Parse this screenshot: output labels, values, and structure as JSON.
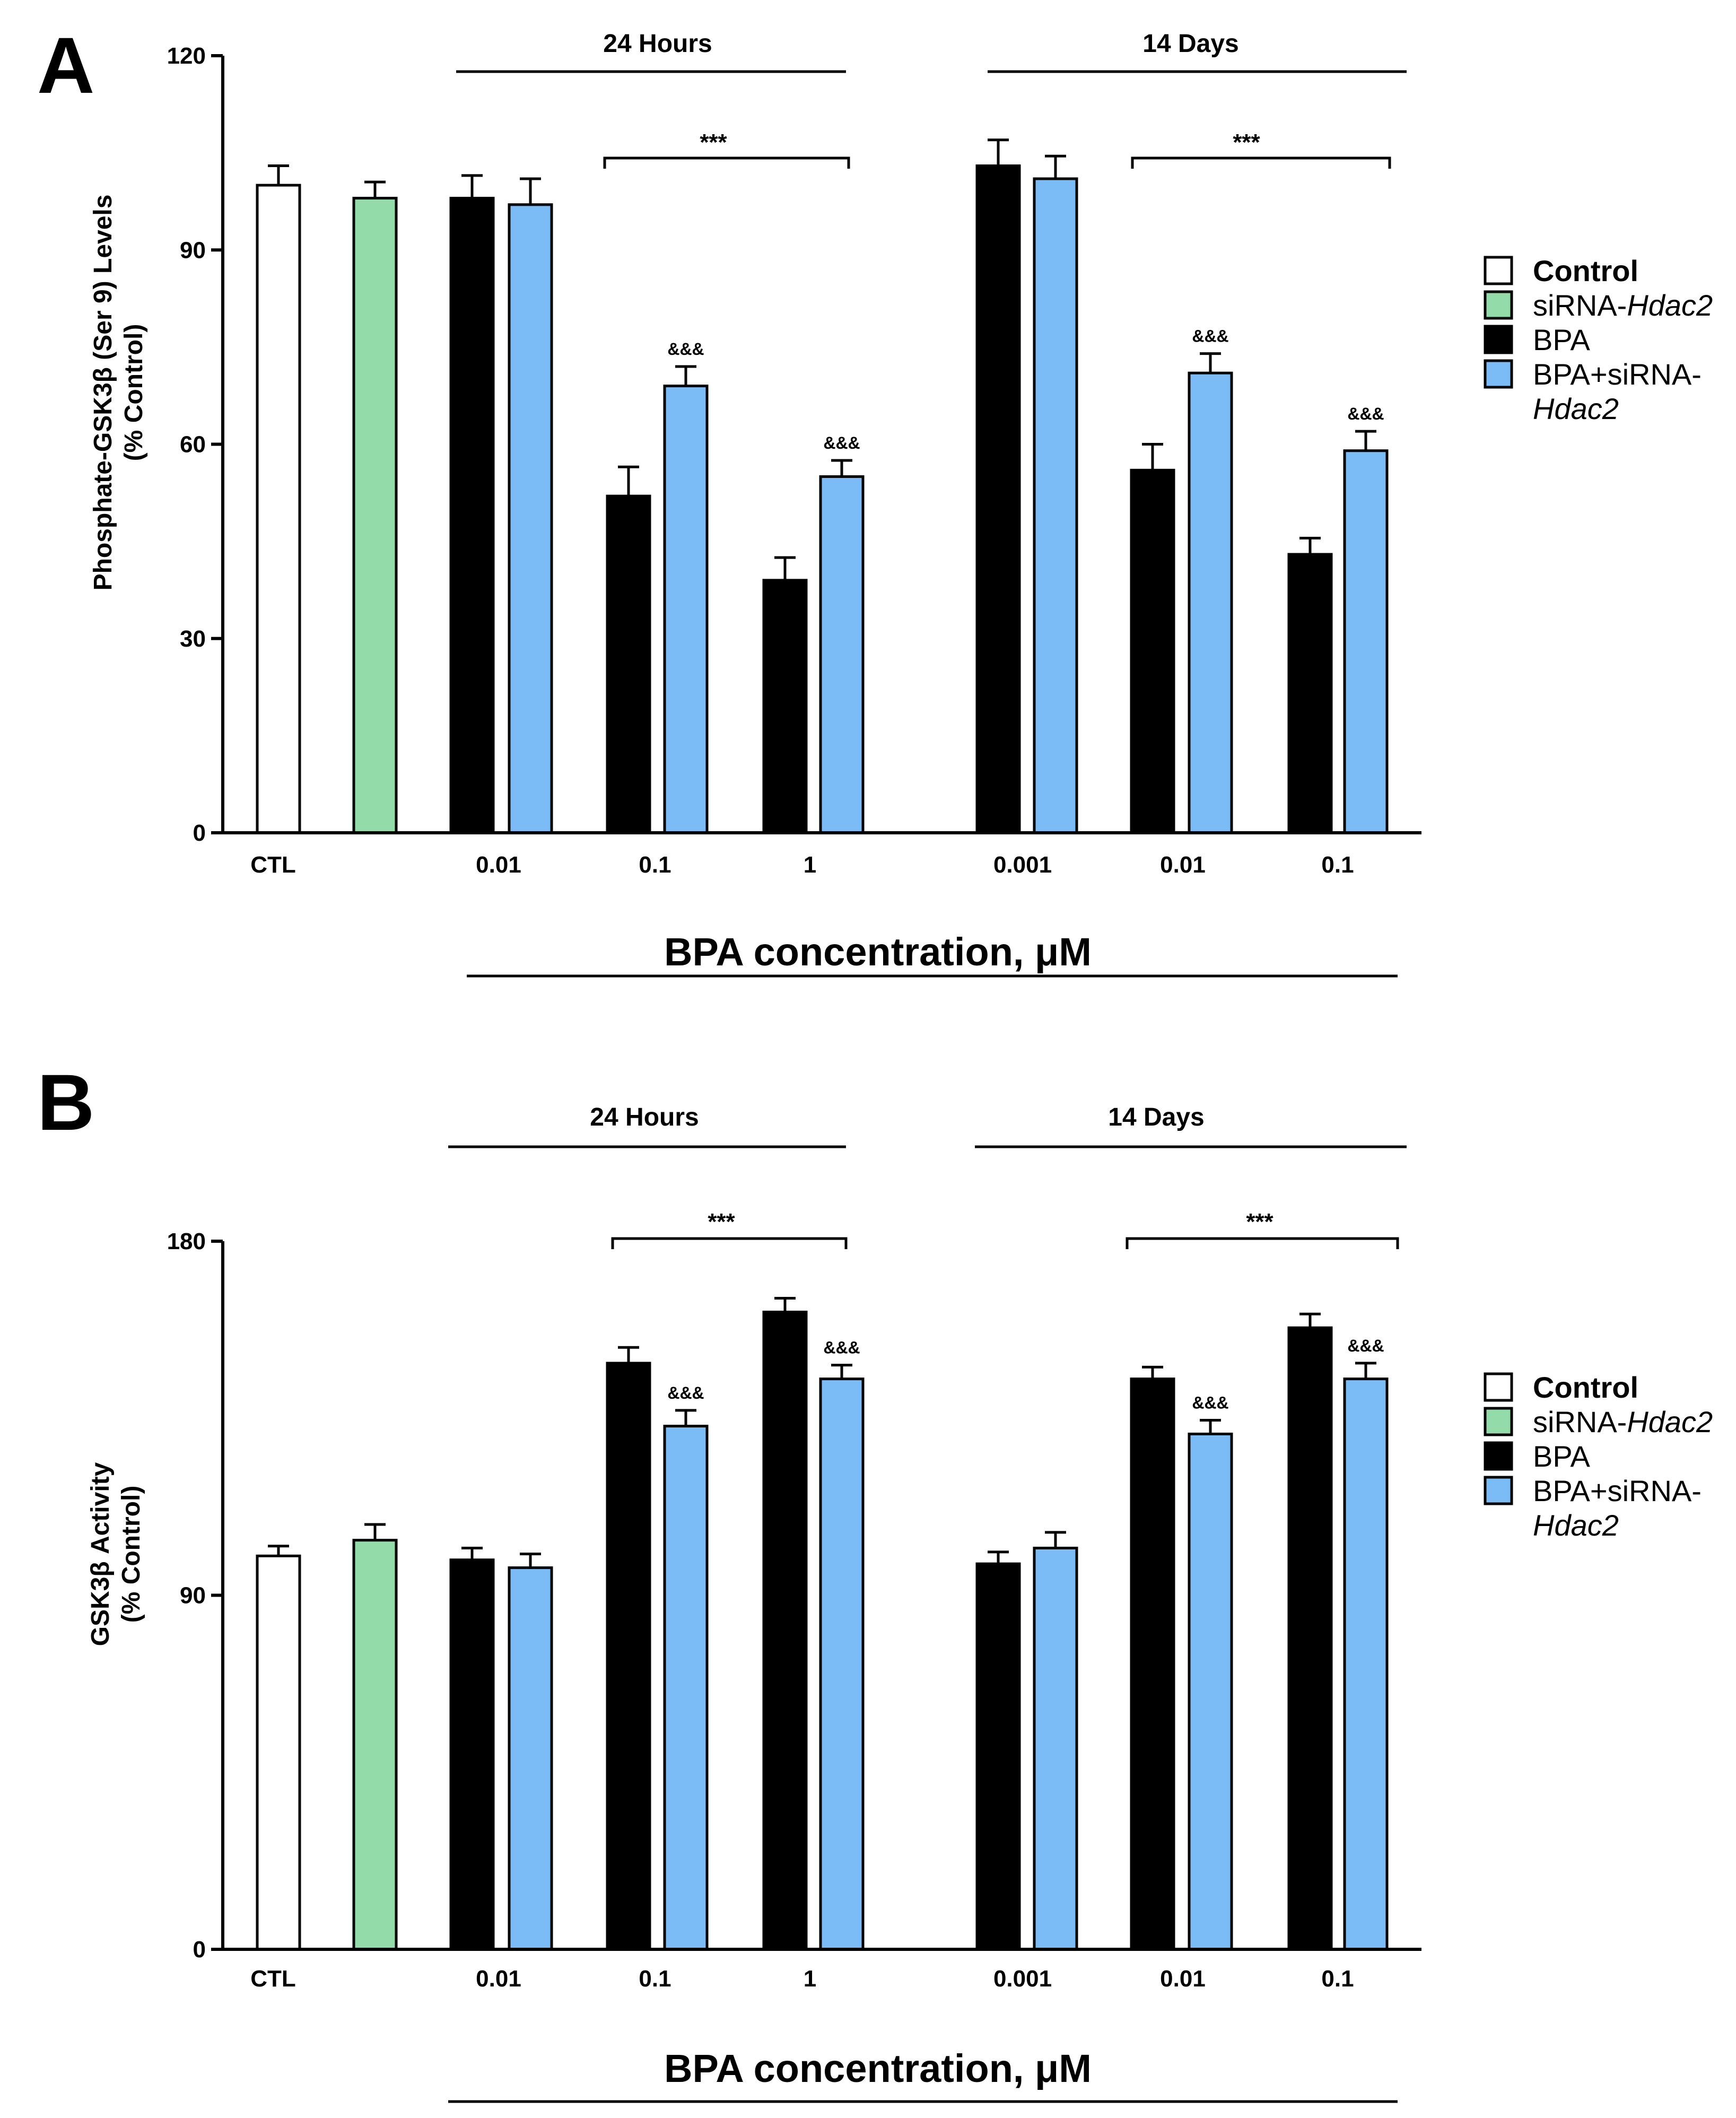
{
  "colors": {
    "control": "#ffffff",
    "sirna": "#93dba8",
    "bpa": "#000000",
    "bpa_sirna": "#7bbcf7",
    "axis": "#000000"
  },
  "legend": [
    {
      "key": "control",
      "label": "Control",
      "italic": ""
    },
    {
      "key": "sirna",
      "label": "siRNA-",
      "italic": "Hdac2"
    },
    {
      "key": "bpa",
      "label": "BPA",
      "italic": ""
    },
    {
      "key": "bpa_sirna",
      "label": "BPA+siRNA-",
      "italic": "Hdac2"
    }
  ],
  "x_categories": [
    "CTL",
    "0.01",
    "0.1",
    "1",
    "0.001",
    "0.01",
    "0.1"
  ],
  "xlabel": "BPA concentration,  μM",
  "periods": [
    "24 Hours",
    "14 Days"
  ],
  "significance": "***",
  "significance_vs_bpa": "&&&",
  "chart_data": [
    {
      "panel": "A",
      "type": "bar",
      "ylabel_line1": "Phosphate-GSK3β (Ser 9)  Levels",
      "ylabel_line2": "(% Control)",
      "ylim": [
        0,
        120
      ],
      "yticks": [
        0,
        30,
        60,
        90,
        120
      ],
      "bars": [
        {
          "group": "CTL",
          "series": "control",
          "value": 100,
          "err": 3
        },
        {
          "group": "CTL",
          "series": "sirna",
          "value": 98,
          "err": 2.5
        },
        {
          "group": "24h 0.01",
          "series": "bpa",
          "value": 98,
          "err": 3.5
        },
        {
          "group": "24h 0.01",
          "series": "bpa_sirna",
          "value": 97,
          "err": 4
        },
        {
          "group": "24h 0.1",
          "series": "bpa",
          "value": 52,
          "err": 4.5
        },
        {
          "group": "24h 0.1",
          "series": "bpa_sirna",
          "value": 69,
          "err": 3,
          "mark": "&&&"
        },
        {
          "group": "24h 1",
          "series": "bpa",
          "value": 39,
          "err": 3.5
        },
        {
          "group": "24h 1",
          "series": "bpa_sirna",
          "value": 55,
          "err": 2.5,
          "mark": "&&&"
        },
        {
          "group": "14d 0.001",
          "series": "bpa",
          "value": 103,
          "err": 4
        },
        {
          "group": "14d 0.001",
          "series": "bpa_sirna",
          "value": 101,
          "err": 3.5
        },
        {
          "group": "14d 0.01",
          "series": "bpa",
          "value": 56,
          "err": 4
        },
        {
          "group": "14d 0.01",
          "series": "bpa_sirna",
          "value": 71,
          "err": 3,
          "mark": "&&&"
        },
        {
          "group": "14d 0.1",
          "series": "bpa",
          "value": 43,
          "err": 2.5
        },
        {
          "group": "14d 0.1",
          "series": "bpa_sirna",
          "value": 59,
          "err": 3,
          "mark": "&&&"
        }
      ]
    },
    {
      "panel": "B",
      "type": "bar",
      "ylabel_line1": "GSK3β Activity",
      "ylabel_line2": "(% Control)",
      "ylim": [
        0,
        180
      ],
      "yticks": [
        0,
        90,
        180
      ],
      "bars": [
        {
          "group": "CTL",
          "series": "control",
          "value": 100,
          "err": 2.5
        },
        {
          "group": "CTL",
          "series": "sirna",
          "value": 104,
          "err": 4
        },
        {
          "group": "24h 0.01",
          "series": "bpa",
          "value": 99,
          "err": 3
        },
        {
          "group": "24h 0.01",
          "series": "bpa_sirna",
          "value": 97,
          "err": 3.5
        },
        {
          "group": "24h 0.1",
          "series": "bpa",
          "value": 149,
          "err": 4
        },
        {
          "group": "24h 0.1",
          "series": "bpa_sirna",
          "value": 133,
          "err": 4,
          "mark": "&&&"
        },
        {
          "group": "24h 1",
          "series": "bpa",
          "value": 162,
          "err": 3.5
        },
        {
          "group": "24h 1",
          "series": "bpa_sirna",
          "value": 145,
          "err": 3.5,
          "mark": "&&&"
        },
        {
          "group": "14d 0.001",
          "series": "bpa",
          "value": 98,
          "err": 3
        },
        {
          "group": "14d 0.001",
          "series": "bpa_sirna",
          "value": 102,
          "err": 4
        },
        {
          "group": "14d 0.01",
          "series": "bpa",
          "value": 145,
          "err": 3
        },
        {
          "group": "14d 0.01",
          "series": "bpa_sirna",
          "value": 131,
          "err": 3.5,
          "mark": "&&&"
        },
        {
          "group": "14d 0.1",
          "series": "bpa",
          "value": 158,
          "err": 3.5
        },
        {
          "group": "14d 0.1",
          "series": "bpa_sirna",
          "value": 145,
          "err": 4,
          "mark": "&&&"
        }
      ]
    }
  ]
}
